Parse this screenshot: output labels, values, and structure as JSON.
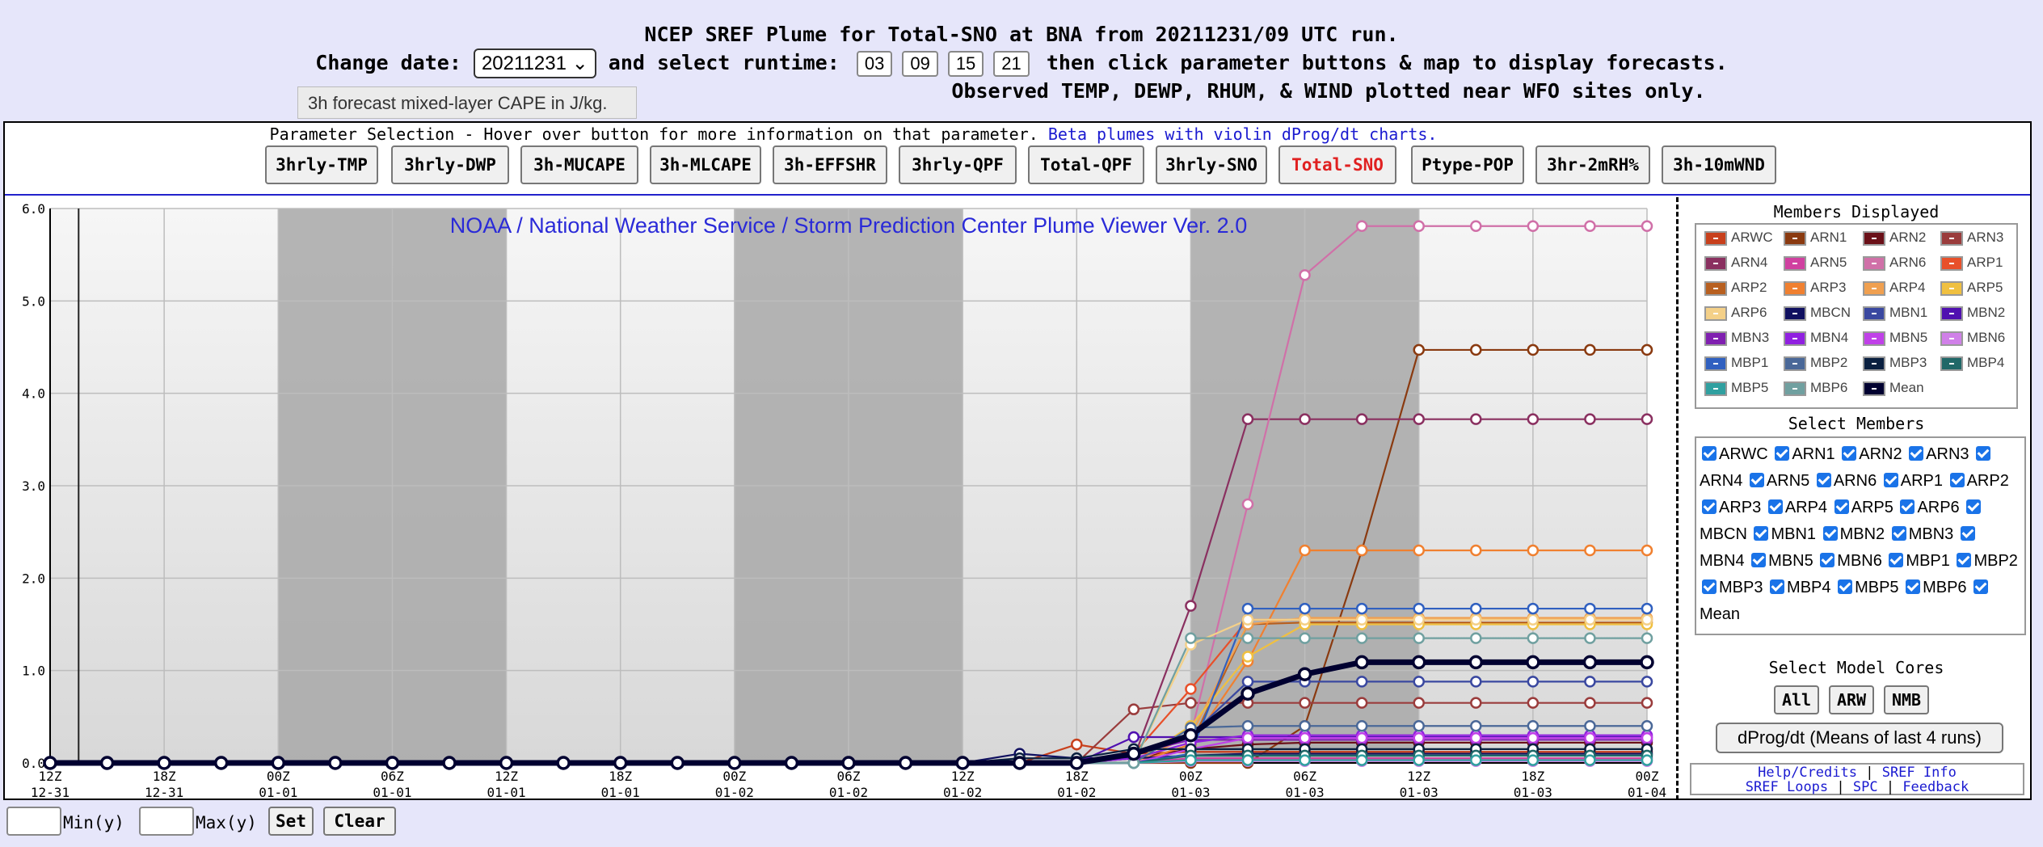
{
  "header": {
    "title": "NCEP SREF Plume for Total-SNO at BNA from 20211231/09 UTC run.",
    "change_date_label": "Change date:",
    "date_value": "20211231",
    "select_runtime_label": "and select runtime:",
    "runtimes": [
      "03",
      "09",
      "15",
      "21"
    ],
    "instructions": "then click parameter buttons & map to display forecasts.",
    "observed_note": "Observed TEMP, DEWP, RHUM, & WIND plotted near WFO sites only."
  },
  "tooltip": "3h forecast mixed-layer CAPE in J/kg.",
  "param_selection": {
    "title": "Parameter Selection - Hover over button for more information on that parameter.",
    "beta_link": "Beta plumes with violin dProg/dt charts.",
    "buttons": [
      "3hrly-TMP",
      "3hrly-DWP",
      "3h-MUCAPE",
      "3h-MLCAPE",
      "3h-EFFSHR",
      "3hrly-QPF",
      "Total-QPF",
      "3hrly-SNO",
      "Total-SNO",
      "Ptype-POP",
      "3hr-2mRH%",
      "3h-10mWND"
    ],
    "active": "Total-SNO",
    "active_color": "#e02020"
  },
  "chart_data": {
    "type": "line",
    "title": "NOAA / National Weather Service / Storm Prediction Center Plume Viewer Ver. 2.0",
    "ylim": [
      0,
      6
    ],
    "yticks": [
      "0.0",
      "1.0",
      "2.0",
      "3.0",
      "4.0",
      "5.0",
      "6.0"
    ],
    "x_range_hours": [
      -9,
      168
    ],
    "xticks": [
      {
        "h": -9,
        "t": "12Z",
        "d": "12-31"
      },
      {
        "h": -3,
        "t": "18Z",
        "d": "12-31"
      },
      {
        "h": 3,
        "t": "00Z",
        "d": "01-01"
      },
      {
        "h": 9,
        "t": "06Z",
        "d": "01-01"
      },
      {
        "h": 15,
        "t": "12Z",
        "d": "01-01"
      },
      {
        "h": 21,
        "t": "18Z",
        "d": "01-01"
      },
      {
        "h": 27,
        "t": "00Z",
        "d": "01-02"
      },
      {
        "h": 33,
        "t": "06Z",
        "d": "01-02"
      },
      {
        "h": 39,
        "t": "12Z",
        "d": "01-02"
      },
      {
        "h": 45,
        "t": "18Z",
        "d": "01-02"
      },
      {
        "h": 51,
        "t": "00Z",
        "d": "01-03"
      },
      {
        "h": 57,
        "t": "06Z",
        "d": "01-03"
      },
      {
        "h": 63,
        "t": "12Z",
        "d": "01-03"
      },
      {
        "h": 69,
        "t": "18Z",
        "d": "01-03"
      },
      {
        "h": 75,
        "t": "00Z",
        "d": "01-04"
      }
    ],
    "series": [
      {
        "name": "ARWC",
        "color": "#c8401c",
        "values": [
          0,
          0,
          0,
          0,
          0,
          0,
          0,
          0,
          0,
          0,
          0,
          0,
          0,
          0,
          0,
          0,
          0,
          0,
          0.2,
          0.1,
          0.12,
          0.12,
          0.12,
          0.12,
          0.12,
          0.12,
          0.12,
          0.12,
          0.12
        ]
      },
      {
        "name": "ARN1",
        "color": "#8a3a10",
        "values": [
          0,
          0,
          0,
          0,
          0,
          0,
          0,
          0,
          0,
          0,
          0,
          0,
          0,
          0,
          0,
          0,
          0,
          0,
          0,
          0,
          0,
          0,
          0.4,
          2.3,
          4.47,
          4.47,
          4.47,
          4.47,
          4.47
        ]
      },
      {
        "name": "ARN2",
        "color": "#6a1018",
        "values": [
          0,
          0,
          0,
          0,
          0,
          0,
          0,
          0,
          0,
          0,
          0,
          0,
          0,
          0,
          0,
          0,
          0,
          0,
          0,
          0.05,
          0.15,
          0.2,
          0.22,
          0.22,
          0.22,
          0.22,
          0.22,
          0.22,
          0.22
        ]
      },
      {
        "name": "ARN3",
        "color": "#9a3c3c",
        "values": [
          0,
          0,
          0,
          0,
          0,
          0,
          0,
          0,
          0,
          0,
          0,
          0,
          0,
          0,
          0,
          0,
          0,
          0,
          0,
          0.58,
          0.65,
          0.65,
          0.65,
          0.65,
          0.65,
          0.65,
          0.65,
          0.65,
          0.65
        ]
      },
      {
        "name": "ARN4",
        "color": "#8a3060",
        "values": [
          0,
          0,
          0,
          0,
          0,
          0,
          0,
          0,
          0,
          0,
          0,
          0,
          0,
          0,
          0,
          0,
          0,
          0,
          0,
          0.05,
          1.7,
          3.72,
          3.72,
          3.72,
          3.72,
          3.72,
          3.72,
          3.72,
          3.72
        ]
      },
      {
        "name": "ARN5",
        "color": "#d040a0",
        "values": [
          0,
          0,
          0,
          0,
          0,
          0,
          0,
          0,
          0,
          0,
          0,
          0,
          0,
          0,
          0,
          0,
          0,
          0,
          0,
          0,
          0.05,
          0.05,
          0.05,
          0.05,
          0.05,
          0.05,
          0.05,
          0.05,
          0.05
        ]
      },
      {
        "name": "ARN6",
        "color": "#d070a8",
        "values": [
          0,
          0,
          0,
          0,
          0,
          0,
          0,
          0,
          0,
          0,
          0,
          0,
          0,
          0,
          0,
          0,
          0,
          0,
          0,
          0,
          0.3,
          2.8,
          5.28,
          5.81,
          5.81,
          5.81,
          5.81,
          5.81,
          5.81
        ]
      },
      {
        "name": "ARP1",
        "color": "#e8502a",
        "values": [
          0,
          0,
          0,
          0,
          0,
          0,
          0,
          0,
          0,
          0,
          0,
          0,
          0,
          0,
          0,
          0,
          0,
          0,
          0,
          0.1,
          0.8,
          1.55,
          1.55,
          1.55,
          1.55,
          1.55,
          1.55,
          1.55,
          1.55
        ]
      },
      {
        "name": "ARP2",
        "color": "#b86020",
        "values": [
          0,
          0,
          0,
          0,
          0,
          0,
          0,
          0,
          0,
          0,
          0,
          0,
          0,
          0,
          0,
          0,
          0,
          0,
          0,
          0,
          0.2,
          1.5,
          1.52,
          1.52,
          1.52,
          1.52,
          1.52,
          1.52,
          1.52
        ]
      },
      {
        "name": "ARP3",
        "color": "#f08030",
        "values": [
          0,
          0,
          0,
          0,
          0,
          0,
          0,
          0,
          0,
          0,
          0,
          0,
          0,
          0,
          0,
          0,
          0,
          0,
          0,
          0,
          0.2,
          1.1,
          2.3,
          2.3,
          2.3,
          2.3,
          2.3,
          2.3,
          2.3
        ]
      },
      {
        "name": "ARP4",
        "color": "#f0a050",
        "values": [
          0,
          0,
          0,
          0,
          0,
          0,
          0,
          0,
          0,
          0,
          0,
          0,
          0,
          0,
          0,
          0,
          0,
          0,
          0,
          0,
          0.3,
          1.5,
          1.57,
          1.57,
          1.57,
          1.57,
          1.57,
          1.57,
          1.57
        ]
      },
      {
        "name": "ARP5",
        "color": "#f0c040",
        "values": [
          0,
          0,
          0,
          0,
          0,
          0,
          0,
          0,
          0,
          0,
          0,
          0,
          0,
          0,
          0,
          0,
          0,
          0,
          0,
          0,
          0.4,
          1.15,
          1.5,
          1.5,
          1.5,
          1.5,
          1.5,
          1.5,
          1.5
        ]
      },
      {
        "name": "ARP6",
        "color": "#f4d088",
        "values": [
          0,
          0,
          0,
          0,
          0,
          0,
          0,
          0,
          0,
          0,
          0,
          0,
          0,
          0,
          0,
          0,
          0,
          0,
          0,
          0,
          1.28,
          1.55,
          1.55,
          1.55,
          1.55,
          1.55,
          1.55,
          1.55,
          1.55
        ]
      },
      {
        "name": "MBCN",
        "color": "#101060",
        "values": [
          0,
          0,
          0,
          0,
          0,
          0,
          0,
          0,
          0,
          0,
          0,
          0,
          0,
          0,
          0,
          0,
          0,
          0.1,
          0.05,
          0.05,
          0.08,
          0.1,
          0.1,
          0.1,
          0.1,
          0.1,
          0.1,
          0.1,
          0.1
        ]
      },
      {
        "name": "MBN1",
        "color": "#3a48a0",
        "values": [
          0,
          0,
          0,
          0,
          0,
          0,
          0,
          0,
          0,
          0,
          0,
          0,
          0,
          0,
          0,
          0,
          0,
          0,
          0,
          0.1,
          0.3,
          0.88,
          0.88,
          0.88,
          0.88,
          0.88,
          0.88,
          0.88,
          0.88
        ]
      },
      {
        "name": "MBN2",
        "color": "#5010b0",
        "values": [
          0,
          0,
          0,
          0,
          0,
          0,
          0,
          0,
          0,
          0,
          0,
          0,
          0,
          0,
          0,
          0,
          0,
          0,
          0,
          0.28,
          0.28,
          0.28,
          0.28,
          0.28,
          0.28,
          0.28,
          0.28,
          0.28,
          0.28
        ]
      },
      {
        "name": "MBN3",
        "color": "#8020b0",
        "values": [
          0,
          0,
          0,
          0,
          0,
          0,
          0,
          0,
          0,
          0,
          0,
          0,
          0,
          0,
          0,
          0,
          0,
          0,
          0,
          0.1,
          0.25,
          0.25,
          0.25,
          0.25,
          0.25,
          0.25,
          0.25,
          0.25,
          0.25
        ]
      },
      {
        "name": "MBN4",
        "color": "#9020e0",
        "values": [
          0,
          0,
          0,
          0,
          0,
          0,
          0,
          0,
          0,
          0,
          0,
          0,
          0,
          0,
          0,
          0,
          0,
          0,
          0,
          0.05,
          0.22,
          0.3,
          0.3,
          0.3,
          0.3,
          0.3,
          0.3,
          0.3,
          0.3
        ]
      },
      {
        "name": "MBN5",
        "color": "#c040e8",
        "values": [
          0,
          0,
          0,
          0,
          0,
          0,
          0,
          0,
          0,
          0,
          0,
          0,
          0,
          0,
          0,
          0,
          0,
          0,
          0,
          0,
          0.15,
          0.27,
          0.27,
          0.27,
          0.27,
          0.27,
          0.27,
          0.27,
          0.27
        ]
      },
      {
        "name": "MBN6",
        "color": "#d080e8",
        "values": [
          0,
          0,
          0,
          0,
          0,
          0,
          0,
          0,
          0,
          0,
          0,
          0,
          0,
          0,
          0,
          0,
          0,
          0,
          0,
          0,
          0.02,
          0.02,
          0.02,
          0.02,
          0.02,
          0.02,
          0.02,
          0.02,
          0.02
        ]
      },
      {
        "name": "MBP1",
        "color": "#3060c0",
        "values": [
          0,
          0,
          0,
          0,
          0,
          0,
          0,
          0,
          0,
          0,
          0,
          0,
          0,
          0,
          0,
          0,
          0,
          0,
          0,
          0,
          0.1,
          1.67,
          1.67,
          1.67,
          1.67,
          1.67,
          1.67,
          1.67,
          1.67
        ]
      },
      {
        "name": "MBP2",
        "color": "#4a6898",
        "values": [
          0,
          0,
          0,
          0,
          0,
          0,
          0,
          0,
          0,
          0,
          0,
          0,
          0,
          0,
          0,
          0,
          0,
          0,
          0,
          0,
          0.38,
          0.4,
          0.4,
          0.4,
          0.4,
          0.4,
          0.4,
          0.4,
          0.4
        ]
      },
      {
        "name": "MBP3",
        "color": "#0a2040",
        "values": [
          0,
          0,
          0,
          0,
          0,
          0,
          0,
          0,
          0,
          0,
          0,
          0,
          0,
          0,
          0,
          0,
          0,
          0.05,
          0.05,
          0.15,
          0.15,
          0.15,
          0.15,
          0.15,
          0.15,
          0.15,
          0.15,
          0.15,
          0.15
        ]
      },
      {
        "name": "MBP4",
        "color": "#206868",
        "values": [
          0,
          0,
          0,
          0,
          0,
          0,
          0,
          0,
          0,
          0,
          0,
          0,
          0,
          0,
          0,
          0,
          0,
          0,
          0,
          0,
          0.08,
          0.08,
          0.08,
          0.08,
          0.08,
          0.08,
          0.08,
          0.08,
          0.08
        ]
      },
      {
        "name": "MBP5",
        "color": "#30a0a0",
        "values": [
          0,
          0,
          0,
          0,
          0,
          0,
          0,
          0,
          0,
          0,
          0,
          0,
          0,
          0,
          0,
          0,
          0,
          0,
          0,
          0,
          0.03,
          0.03,
          0.03,
          0.03,
          0.03,
          0.03,
          0.03,
          0.03,
          0.03
        ]
      },
      {
        "name": "MBP6",
        "color": "#70a0a0",
        "values": [
          0,
          0,
          0,
          0,
          0,
          0,
          0,
          0,
          0,
          0,
          0,
          0,
          0,
          0,
          0,
          0,
          0,
          0,
          0,
          0,
          1.35,
          1.35,
          1.35,
          1.35,
          1.35,
          1.35,
          1.35,
          1.35,
          1.35
        ]
      },
      {
        "name": "Mean",
        "color": "#000030",
        "values": [
          0,
          0,
          0,
          0,
          0,
          0,
          0,
          0,
          0,
          0,
          0,
          0,
          0,
          0,
          0,
          0,
          0,
          0,
          0,
          0.1,
          0.3,
          0.75,
          0.96,
          1.09,
          1.09,
          1.09,
          1.09,
          1.09,
          1.09
        ]
      }
    ],
    "x_hours_step": 3
  },
  "legend_title": "Members Displayed",
  "select_members_title": "Select Members",
  "select_cores_title": "Select Model Cores",
  "core_buttons": [
    "All",
    "ARW",
    "NMB"
  ],
  "dprog_button": "dProg/dt (Means of last 4 runs)",
  "links": {
    "help": "Help/Credits",
    "sref_info": "SREF Info",
    "sref_loops": "SREF Loops",
    "spc": "SPC",
    "feedback": "Feedback"
  },
  "bottom": {
    "min_label": "Min(y)",
    "max_label": "Max(y)",
    "set": "Set",
    "clear": "Clear"
  }
}
